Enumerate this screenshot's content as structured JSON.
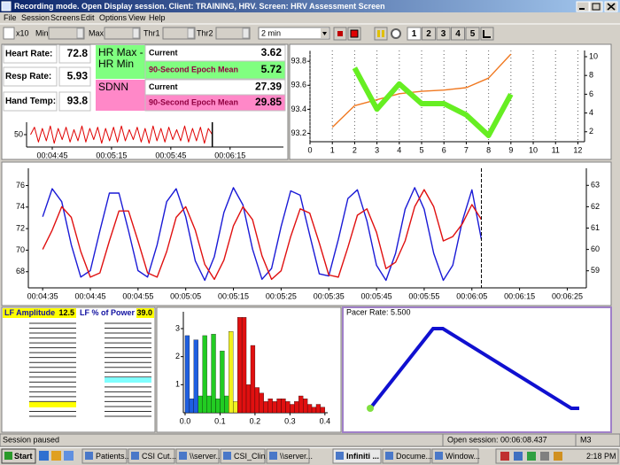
{
  "window": {
    "title": "Recording mode. Open Display session. Client: TRAINING, HRV. Screen: HRV Assessment Screen",
    "menu": [
      "File",
      "Session",
      "Screens",
      "Edit",
      "Options",
      "View",
      "Help"
    ]
  },
  "toolbar": {
    "zoom": "x10",
    "fields": [
      "Min",
      "Max",
      "Thr1",
      "Thr2"
    ],
    "timebase": "2 min",
    "screens": [
      "1",
      "2",
      "3",
      "4",
      "5"
    ]
  },
  "readouts": [
    {
      "label": "Heart Rate:",
      "value": 72.8
    },
    {
      "label": "Resp Rate:",
      "value": 5.93
    },
    {
      "label": "Hand Temp:",
      "value": 93.8
    }
  ],
  "stats": [
    {
      "name": [
        "HR Max -",
        "HR Min"
      ],
      "rows": [
        {
          "label": "Current",
          "value": 3.62
        },
        {
          "label": "90-Second Epoch Mean",
          "value": 5.72
        }
      ]
    },
    {
      "name": [
        "SDNN"
      ],
      "rows": [
        {
          "label": "Current",
          "value": 27.39
        },
        {
          "label": "90-Second Epoch Mean",
          "value": 29.85
        }
      ]
    }
  ],
  "gauges": [
    {
      "label": "LF Amplitude",
      "value": 12.5,
      "lim": [
        0,
        100
      ]
    },
    {
      "label": "LF % of Power",
      "value": 39,
      "value_label": "39.0",
      "lim": [
        0,
        100
      ]
    }
  ],
  "pacer": {
    "label": "Pacer Rate: 5.500"
  },
  "status": {
    "left": "Session paused",
    "session": "Open session: 00:06:08.437",
    "mode": "M3"
  },
  "taskbar": {
    "start": "Start",
    "buttons": [
      "Patients....",
      "CSI Cut...",
      "\\\\server...",
      "CSI_Clin...",
      "\\\\server...",
      "Infiniti ...",
      "Docume...",
      "Window..."
    ],
    "clock": "2:18 PM"
  },
  "chart_data": [
    {
      "type": "line",
      "xlim": [
        272,
        402
      ],
      "ylim": [
        40,
        60
      ],
      "yticks": [
        50
      ],
      "xticks": [
        {
          "value": 285,
          "label": "00:04:45"
        },
        {
          "value": 315,
          "label": "00:05:15"
        },
        {
          "value": 345,
          "label": "00:05:45"
        },
        {
          "value": 375,
          "label": "00:06:15"
        }
      ],
      "x": [
        274,
        276,
        278,
        280,
        282,
        284,
        286,
        288,
        290,
        292,
        294,
        296,
        298,
        300,
        302,
        304,
        306,
        308,
        310,
        312,
        314,
        316,
        318,
        320,
        322,
        324,
        326,
        328,
        330,
        332,
        334,
        336,
        338,
        340,
        342,
        344,
        346,
        348,
        350,
        352,
        354,
        356,
        358,
        360,
        362,
        364,
        366
      ],
      "series": [
        {
          "color": "#e00000",
          "values": [
            50,
            56,
            44,
            55,
            45,
            57,
            43,
            55,
            46,
            56,
            44,
            54,
            45,
            57,
            44,
            55,
            46,
            56,
            43,
            55,
            45,
            56,
            44,
            57,
            45,
            54,
            46,
            56,
            44,
            55,
            43,
            57,
            45,
            55,
            44,
            56,
            46,
            54,
            45,
            57,
            44,
            55,
            45,
            56,
            43,
            55,
            50
          ]
        }
      ]
    },
    {
      "type": "line",
      "grid": "x",
      "xlim": [
        0,
        12.3
      ],
      "xticks": [
        0,
        1,
        2,
        3,
        4,
        5,
        6,
        7,
        8,
        9,
        10,
        11,
        12
      ],
      "ylim": [
        93.13,
        93.89
      ],
      "yticks": [
        93.2,
        93.4,
        93.6,
        93.8
      ],
      "y2lim": [
        0.94,
        10.66
      ],
      "y2ticks": [
        2,
        4,
        6,
        8,
        10
      ],
      "x": [
        1,
        2,
        3,
        4,
        5,
        6,
        7,
        8,
        9
      ],
      "series": [
        {
          "color": "#f07820",
          "values": [
            93.25,
            93.43,
            93.48,
            93.53,
            93.55,
            93.56,
            93.58,
            93.66,
            93.86
          ]
        },
        {
          "color": "#66ee22",
          "axis": "y2",
          "values": [
            null,
            8.8,
            4.4,
            7.1,
            5.0,
            5.0,
            3.8,
            1.6,
            6.0
          ]
        }
      ]
    },
    {
      "type": "line",
      "xlim": [
        272,
        389
      ],
      "ylim": [
        66.5,
        77.6
      ],
      "yticks": [
        68,
        70,
        72,
        74,
        76
      ],
      "y2lim": [
        58.2,
        63.8
      ],
      "y2ticks": [
        59,
        60,
        61,
        62,
        63
      ],
      "xticks": [
        {
          "value": 275,
          "label": "00:04:35"
        },
        {
          "value": 285,
          "label": "00:04:45"
        },
        {
          "value": 295,
          "label": "00:04:55"
        },
        {
          "value": 305,
          "label": "00:05:05"
        },
        {
          "value": 315,
          "label": "00:05:15"
        },
        {
          "value": 325,
          "label": "00:05:25"
        },
        {
          "value": 335,
          "label": "00:05:35"
        },
        {
          "value": 345,
          "label": "00:05:45"
        },
        {
          "value": 355,
          "label": "00:05:55"
        },
        {
          "value": 365,
          "label": "00:06:05"
        },
        {
          "value": 375,
          "label": "00:06:15"
        },
        {
          "value": 385,
          "label": "00:06:25"
        }
      ],
      "x": [
        275,
        277,
        279,
        281,
        283,
        285,
        287,
        289,
        291,
        293,
        295,
        297,
        299,
        301,
        303,
        305,
        307,
        309,
        311,
        313,
        315,
        317,
        319,
        321,
        323,
        325,
        327,
        329,
        331,
        333,
        335,
        337,
        339,
        341,
        343,
        345,
        347,
        349,
        351,
        353,
        355,
        357,
        359,
        361,
        363,
        365,
        367
      ],
      "series": [
        {
          "color": "#1a1ad6",
          "values": [
            73.1,
            75.7,
            74.5,
            70.5,
            67.5,
            68.1,
            71.8,
            75.3,
            75.3,
            71.8,
            68.1,
            67.5,
            70.5,
            74.5,
            75.7,
            73.1,
            69.0,
            67.2,
            69.4,
            73.5,
            75.8,
            74.2,
            70.1,
            67.3,
            68.3,
            72.2,
            75.5,
            75.1,
            71.4,
            67.8,
            67.6,
            71.0,
            74.8,
            75.6,
            72.7,
            68.6,
            67.2,
            69.7,
            73.8,
            75.8,
            73.8,
            69.7,
            67.2,
            68.6,
            72.7,
            75.6,
            71.0
          ]
        },
        {
          "color": "#e01010",
          "axis": "y2",
          "values": [
            60.0,
            60.9,
            62.0,
            61.5,
            59.9,
            58.7,
            58.9,
            60.4,
            61.8,
            61.8,
            60.4,
            58.9,
            58.7,
            59.9,
            61.5,
            62.0,
            60.9,
            59.3,
            58.6,
            59.5,
            61.1,
            62.0,
            61.4,
            59.7,
            58.6,
            59.0,
            60.6,
            61.9,
            61.7,
            60.3,
            58.8,
            58.7,
            60.1,
            61.6,
            61.9,
            60.8,
            59.1,
            59.4,
            60.4,
            62.0,
            62.8,
            62.0,
            60.4,
            60.6,
            61.2,
            62.1,
            61.4
          ]
        }
      ]
    },
    {
      "type": "histogram",
      "xlim": [
        -0.005,
        0.408
      ],
      "ylim": [
        0,
        3.6
      ],
      "yticks": [
        1,
        2,
        3
      ],
      "xticks": [
        {
          "value": 0,
          "label": "0.0"
        },
        0.1,
        0.2,
        0.3,
        0.4
      ],
      "bins": [
        0,
        0.0125,
        0.025,
        0.0375,
        0.05,
        0.0625,
        0.075,
        0.0875,
        0.1,
        0.1125,
        0.125,
        0.1375,
        0.15,
        0.1625,
        0.175,
        0.1875,
        0.2,
        0.2125,
        0.225,
        0.2375,
        0.25,
        0.2625,
        0.275,
        0.2875,
        0.3,
        0.3125,
        0.325,
        0.3375,
        0.35,
        0.3625,
        0.375,
        0.3875,
        0.4
      ],
      "values": [
        2.75,
        0.5,
        2.6,
        0.6,
        2.75,
        0.6,
        2.8,
        0.5,
        2.2,
        0.6,
        2.9,
        0.4,
        3.4,
        3.4,
        1.0,
        2.4,
        0.9,
        0.7,
        0.4,
        0.5,
        0.4,
        0.5,
        0.5,
        0.4,
        0.3,
        0.4,
        0.6,
        0.5,
        0.3,
        0.2,
        0.3,
        0.2
      ],
      "colors": [
        "#1f5fe0",
        "#1f5fe0",
        "#1f5fe0",
        "#22cc22",
        "#22cc22",
        "#22cc22",
        "#22cc22",
        "#22cc22",
        "#22cc22",
        "#22cc22",
        "#f0f020",
        "#f0f020",
        "#e01010",
        "#e01010",
        "#e01010",
        "#e01010",
        "#e01010",
        "#e01010",
        "#e01010",
        "#e01010",
        "#e01010",
        "#e01010",
        "#e01010",
        "#e01010",
        "#e01010",
        "#e01010",
        "#e01010",
        "#e01010",
        "#e01010",
        "#e01010",
        "#e01010",
        "#e01010"
      ]
    }
  ]
}
